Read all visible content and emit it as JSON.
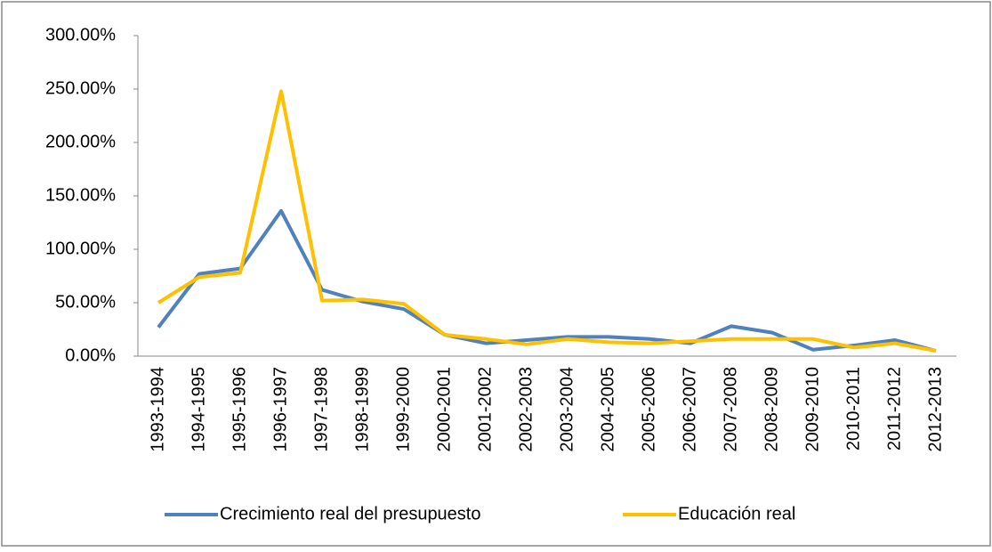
{
  "chart_data": {
    "type": "line",
    "categories": [
      "1993-1994",
      "1994-1995",
      "1995-1996",
      "1996-1997",
      "1997-1998",
      "1998-1999",
      "1999-2000",
      "2000-2001",
      "2001-2002",
      "2002-2003",
      "2003-2004",
      "2004-2005",
      "2005-2006",
      "2006-2007",
      "2007-2008",
      "2008-2009",
      "2009-2010",
      "2010-2011",
      "2011-2012",
      "2012-2013"
    ],
    "series": [
      {
        "name": "Crecimiento real del presupuesto",
        "color": "#4f81bd",
        "values": [
          27,
          77,
          82,
          136,
          62,
          51,
          44,
          20,
          12,
          15,
          18,
          18,
          16,
          12,
          28,
          22,
          6,
          10,
          15,
          5
        ]
      },
      {
        "name": "Educación real",
        "color": "#ffc000",
        "values": [
          50,
          74,
          78,
          248,
          52,
          53,
          49,
          20,
          16,
          11,
          16,
          13,
          12,
          14,
          16,
          16,
          16,
          8,
          12,
          5
        ]
      }
    ],
    "ylim": [
      0,
      300
    ],
    "yticks": [
      {
        "value": 0,
        "label": "0.00%"
      },
      {
        "value": 50,
        "label": "50.00%"
      },
      {
        "value": 100,
        "label": "100.00%"
      },
      {
        "value": 150,
        "label": "150.00%"
      },
      {
        "value": 200,
        "label": "200.00%"
      },
      {
        "value": 250,
        "label": "250.00%"
      },
      {
        "value": 300,
        "label": "300.00%"
      }
    ],
    "legend": "bottom"
  }
}
